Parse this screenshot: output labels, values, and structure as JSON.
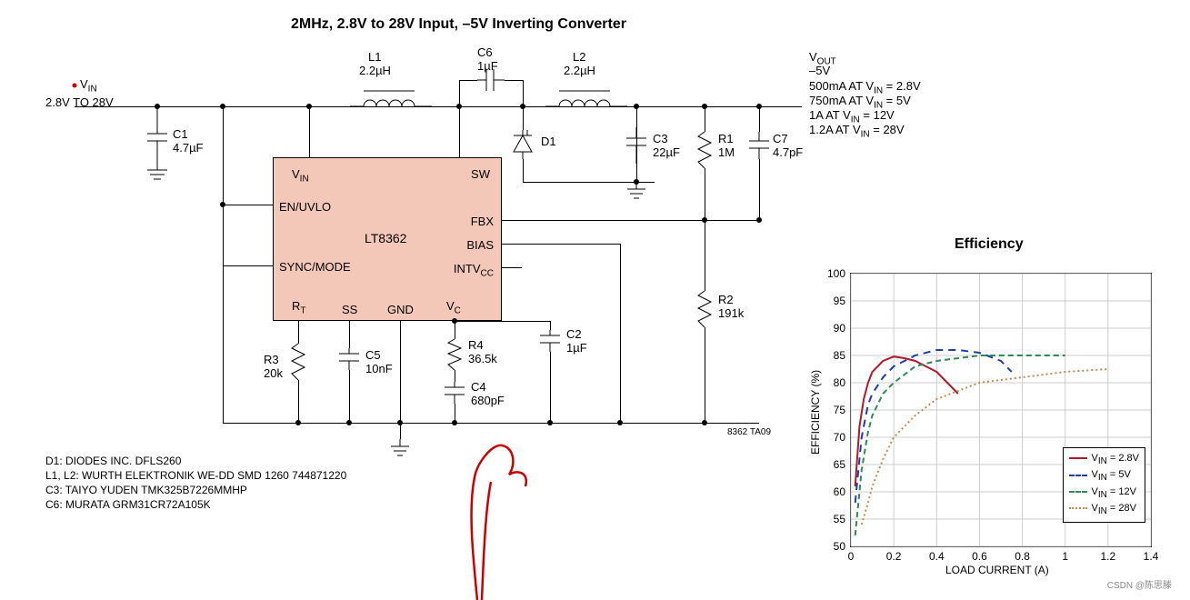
{
  "title": "2MHz, 2.8V to 28V Input, –5V Inverting Converter",
  "input": {
    "vin_label": "VIN",
    "range": "2.8V TO 28V"
  },
  "output": {
    "vout_label": "VOUT",
    "vout_value": "–5V",
    "lines": [
      "500mA AT VIN = 2.8V",
      "750mA AT VIN = 5V",
      "1A AT VIN = 12V",
      "1.2A AT VIN = 28V"
    ]
  },
  "components": {
    "L1": {
      "name": "L1",
      "value": "2.2µH"
    },
    "L2": {
      "name": "L2",
      "value": "2.2µH"
    },
    "C1": {
      "name": "C1",
      "value": "4.7µF"
    },
    "C2": {
      "name": "C2",
      "value": "1µF"
    },
    "C3": {
      "name": "C3",
      "value": "22µF"
    },
    "C4": {
      "name": "C4",
      "value": "680pF"
    },
    "C5": {
      "name": "C5",
      "value": "10nF"
    },
    "C6": {
      "name": "C6",
      "value": "1µF"
    },
    "C7": {
      "name": "C7",
      "value": "4.7pF"
    },
    "R1": {
      "name": "R1",
      "value": "1M"
    },
    "R2": {
      "name": "R2",
      "value": "191k"
    },
    "R3": {
      "name": "R3",
      "value": "20k"
    },
    "R4": {
      "name": "R4",
      "value": "36.5k"
    },
    "D1": {
      "name": "D1"
    }
  },
  "chip": {
    "part": "LT8362",
    "pins": {
      "vin": "VIN",
      "sw": "SW",
      "en": "EN/UVLO",
      "sync": "SYNC/MODE",
      "fbx": "FBX",
      "bias": "BIAS",
      "intvcc": "INTVCC",
      "rt": "RT",
      "ss": "SS",
      "gnd": "GND",
      "vc": "VC"
    }
  },
  "notes": {
    "d1": "D1: DIODES INC. DFLS260",
    "l": "L1, L2: WURTH ELEKTRONIK WE-DD SMD 1260 744871220",
    "c3": "C3: TAIYO YUDEN TMK325B7226MMHP",
    "c6": "C6: MURATA GRM31CR72A105K"
  },
  "tag": "8362 TA09",
  "watermark": "CSDN @陈思滕",
  "chart": {
    "title": "Efficiency",
    "xlabel": "LOAD CURRENT (A)",
    "ylabel": "EFFICIENCY (%)",
    "xlim": [
      0,
      1.4
    ],
    "ylim": [
      50,
      100
    ],
    "xtick_step": 0.2,
    "ytick_step": 5,
    "grid_color": "#cccccc",
    "series": [
      {
        "label": "VIN = 2.8V",
        "color": "#b11a2b",
        "dash": "solid",
        "points": [
          [
            0.02,
            61
          ],
          [
            0.04,
            72
          ],
          [
            0.06,
            77
          ],
          [
            0.08,
            80
          ],
          [
            0.1,
            82
          ],
          [
            0.15,
            84
          ],
          [
            0.2,
            84.8
          ],
          [
            0.25,
            84.5
          ],
          [
            0.3,
            84
          ],
          [
            0.35,
            83
          ],
          [
            0.4,
            82
          ],
          [
            0.45,
            80
          ],
          [
            0.5,
            78
          ]
        ]
      },
      {
        "label": "VIN = 5V",
        "color": "#1f3fa8",
        "dash": "8,6",
        "points": [
          [
            0.02,
            58
          ],
          [
            0.05,
            70
          ],
          [
            0.08,
            76
          ],
          [
            0.1,
            78
          ],
          [
            0.15,
            81
          ],
          [
            0.2,
            83
          ],
          [
            0.3,
            85
          ],
          [
            0.4,
            86
          ],
          [
            0.5,
            86
          ],
          [
            0.6,
            85.5
          ],
          [
            0.7,
            84
          ],
          [
            0.75,
            82
          ]
        ]
      },
      {
        "label": "VIN = 12V",
        "color": "#2e8b57",
        "dash": "6,4",
        "points": [
          [
            0.02,
            52
          ],
          [
            0.05,
            64
          ],
          [
            0.08,
            71
          ],
          [
            0.1,
            74
          ],
          [
            0.15,
            78
          ],
          [
            0.2,
            80
          ],
          [
            0.3,
            83
          ],
          [
            0.4,
            84
          ],
          [
            0.6,
            85
          ],
          [
            0.8,
            85
          ],
          [
            1.0,
            85
          ]
        ]
      },
      {
        "label": "VIN = 28V",
        "color": "#c8884a",
        "dash": "2,3",
        "points": [
          [
            0.05,
            54
          ],
          [
            0.08,
            58
          ],
          [
            0.1,
            61
          ],
          [
            0.15,
            66
          ],
          [
            0.2,
            70
          ],
          [
            0.3,
            74
          ],
          [
            0.4,
            77
          ],
          [
            0.5,
            78.5
          ],
          [
            0.6,
            80
          ],
          [
            0.8,
            81
          ],
          [
            1.0,
            82
          ],
          [
            1.2,
            82.5
          ]
        ]
      }
    ]
  },
  "colors": {
    "chip_fill": "#f4c8b8",
    "wire": "#000000",
    "annotation": "#cc0000"
  }
}
